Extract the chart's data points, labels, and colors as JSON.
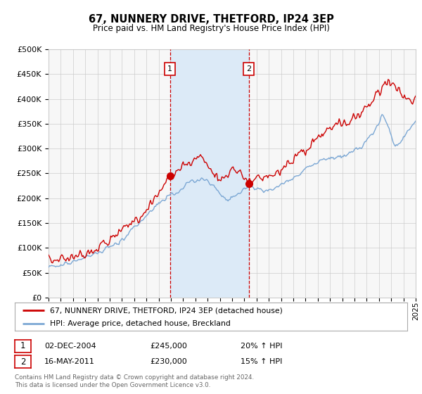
{
  "title": "67, NUNNERY DRIVE, THETFORD, IP24 3EP",
  "subtitle": "Price paid vs. HM Land Registry's House Price Index (HPI)",
  "legend_line1": "67, NUNNERY DRIVE, THETFORD, IP24 3EP (detached house)",
  "legend_line2": "HPI: Average price, detached house, Breckland",
  "event1_date": "02-DEC-2004",
  "event1_price": "£245,000",
  "event1_hpi": "20% ↑ HPI",
  "event2_date": "16-MAY-2011",
  "event2_price": "£230,000",
  "event2_hpi": "15% ↑ HPI",
  "footer": "Contains HM Land Registry data © Crown copyright and database right 2024.\nThis data is licensed under the Open Government Licence v3.0.",
  "property_color": "#cc0000",
  "hpi_color": "#7ba7d4",
  "shade_color": "#dceaf7",
  "event_vline_color": "#cc0000",
  "grid_color": "#cccccc",
  "background_color": "#f7f7f7",
  "ylim": [
    0,
    500000
  ],
  "yticks": [
    0,
    50000,
    100000,
    150000,
    200000,
    250000,
    300000,
    350000,
    400000,
    450000,
    500000
  ],
  "year_start": 1995,
  "year_end": 2025,
  "event1_year": 2004.92,
  "event2_year": 2011.37
}
